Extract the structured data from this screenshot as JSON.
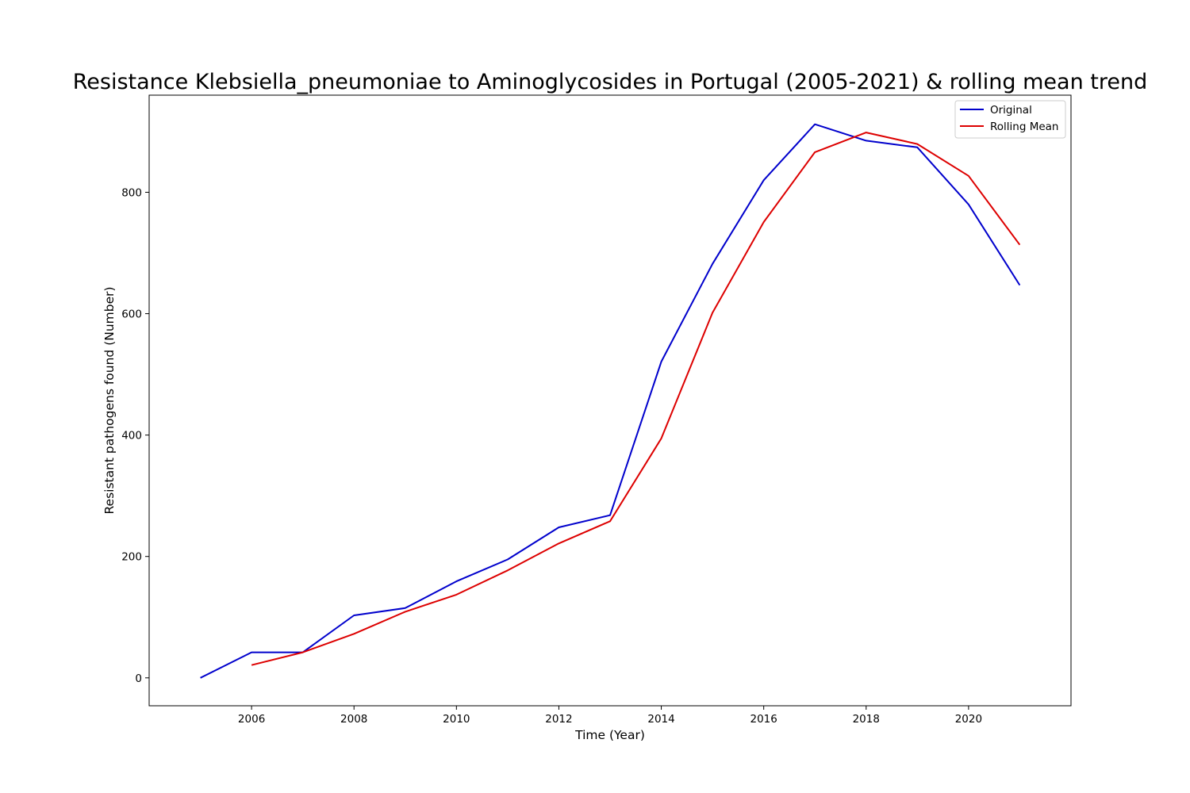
{
  "chart_data": {
    "type": "line",
    "title": "Resistance Klebsiella_pneumoniae to Aminoglycosides in Portugal (2005-2021) & rolling mean trend",
    "xlabel": "Time (Year)",
    "ylabel": "Resistant pathogens found (Number)",
    "xlim": [
      2004,
      2022
    ],
    "ylim": [
      -46,
      960
    ],
    "xticks": [
      2006,
      2008,
      2010,
      2012,
      2014,
      2016,
      2018,
      2020
    ],
    "yticks": [
      0,
      200,
      400,
      600,
      800
    ],
    "grid": false,
    "legend_position": "upper right",
    "series": [
      {
        "name": "Original",
        "color": "#0000cc",
        "x": [
          2005,
          2006,
          2007,
          2008,
          2009,
          2010,
          2011,
          2012,
          2013,
          2014,
          2015,
          2016,
          2017,
          2018,
          2019,
          2020,
          2021
        ],
        "values": [
          0,
          42,
          42,
          103,
          115,
          159,
          195,
          248,
          268,
          521,
          682,
          820,
          912,
          885,
          874,
          780,
          647
        ]
      },
      {
        "name": "Rolling Mean",
        "color": "#dd0000",
        "x": [
          2006,
          2007,
          2008,
          2009,
          2010,
          2011,
          2012,
          2013,
          2014,
          2015,
          2016,
          2017,
          2018,
          2019,
          2020,
          2021
        ],
        "values": [
          21,
          42,
          72.5,
          109,
          137,
          177,
          221.5,
          258,
          394.5,
          601.5,
          751,
          866,
          898.5,
          879.5,
          827,
          713.5
        ]
      }
    ]
  }
}
